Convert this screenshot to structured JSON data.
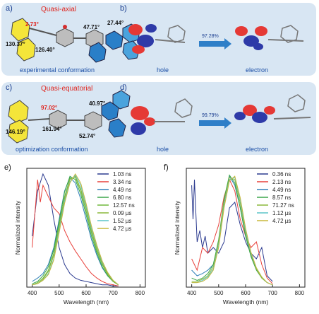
{
  "panels": {
    "a": {
      "letter": "a)",
      "title": "Quasi-axial",
      "caption": "experimental conformation",
      "angles": {
        "a1": "130.37°",
        "a2": "2.73°",
        "a3": "126.40°",
        "a4": "47.71°",
        "a5": "27.44°"
      }
    },
    "b": {
      "letter": "b)",
      "hole": "hole",
      "electron": "electron",
      "percent": "97.28%"
    },
    "c": {
      "letter": "c)",
      "title": "Quasi-equatorial",
      "caption": "optimization conformation",
      "angles": {
        "a1": "97.02°",
        "a2": "146.19°",
        "a3": "161.94°",
        "a4": "52.74°",
        "a5": "40.97°"
      }
    },
    "d": {
      "letter": "d)",
      "hole": "hole",
      "electron": "electron",
      "percent": "99.79%"
    }
  },
  "chart_data": [
    {
      "panel": "e)",
      "type": "line",
      "xlabel": "Wavelength (nm)",
      "ylabel": "Normalized intensity",
      "xlim": [
        380,
        820
      ],
      "ylim": [
        0,
        1.05
      ],
      "xticks": [
        400,
        500,
        600,
        700,
        800
      ],
      "legend": "top-right",
      "series": [
        {
          "name": "1.03 ns",
          "color": "#2b3a8f",
          "x": [
            400,
            420,
            440,
            460,
            480,
            500,
            520,
            540,
            560,
            580,
            600,
            620,
            640,
            660,
            680,
            700,
            720
          ],
          "values": [
            0.45,
            0.85,
            1.0,
            0.9,
            0.6,
            0.35,
            0.2,
            0.12,
            0.08,
            0.06,
            0.05,
            0.04,
            0.03,
            0.02,
            0.02,
            0.01,
            0.01
          ]
        },
        {
          "name": "3.34 ns",
          "color": "#e8403a",
          "x": [
            400,
            420,
            430,
            440,
            460,
            480,
            500,
            520,
            540,
            560,
            580,
            600,
            620,
            640,
            660,
            680,
            700,
            720
          ],
          "values": [
            0.35,
            0.95,
            0.75,
            0.9,
            0.8,
            0.7,
            0.65,
            0.5,
            0.4,
            0.32,
            0.25,
            0.18,
            0.12,
            0.08,
            0.05,
            0.03,
            0.02,
            0.01
          ]
        },
        {
          "name": "4.49 ns",
          "color": "#2f7fb8",
          "x": [
            400,
            420,
            440,
            460,
            480,
            500,
            520,
            540,
            560,
            580,
            600,
            620,
            640,
            660,
            680,
            700,
            720
          ],
          "values": [
            0.05,
            0.08,
            0.12,
            0.2,
            0.35,
            0.6,
            0.85,
            0.97,
            0.92,
            0.78,
            0.6,
            0.42,
            0.28,
            0.17,
            0.1,
            0.05,
            0.02
          ]
        },
        {
          "name": "6.80 ns",
          "color": "#3aa64a",
          "x": [
            400,
            420,
            440,
            460,
            480,
            500,
            520,
            540,
            560,
            580,
            600,
            620,
            640,
            660,
            680,
            700,
            720
          ],
          "values": [
            0.03,
            0.05,
            0.1,
            0.18,
            0.33,
            0.58,
            0.84,
            0.98,
            0.95,
            0.82,
            0.64,
            0.45,
            0.3,
            0.18,
            0.1,
            0.05,
            0.02
          ]
        },
        {
          "name": "12.57 ns",
          "color": "#6fb83a",
          "x": [
            400,
            420,
            440,
            460,
            480,
            500,
            520,
            540,
            560,
            580,
            600,
            620,
            640,
            660,
            680,
            700,
            720
          ],
          "values": [
            0.02,
            0.04,
            0.08,
            0.15,
            0.3,
            0.55,
            0.8,
            0.96,
            0.97,
            0.85,
            0.67,
            0.48,
            0.32,
            0.2,
            0.11,
            0.05,
            0.02
          ]
        },
        {
          "name": "0.09 µs",
          "color": "#8ab83a",
          "x": [
            400,
            420,
            440,
            460,
            480,
            500,
            520,
            540,
            560,
            580,
            600,
            620,
            640,
            660,
            680,
            700,
            720
          ],
          "values": [
            0.02,
            0.03,
            0.07,
            0.14,
            0.28,
            0.52,
            0.78,
            0.95,
            0.98,
            0.87,
            0.7,
            0.5,
            0.34,
            0.21,
            0.12,
            0.06,
            0.02
          ]
        },
        {
          "name": "1.52 µs",
          "color": "#5bc4c9",
          "x": [
            400,
            420,
            440,
            460,
            480,
            500,
            520,
            540,
            560,
            580,
            600,
            620,
            640,
            660,
            680,
            700,
            720
          ],
          "values": [
            0.02,
            0.03,
            0.06,
            0.12,
            0.25,
            0.5,
            0.76,
            0.93,
            0.99,
            0.9,
            0.72,
            0.52,
            0.36,
            0.22,
            0.13,
            0.06,
            0.02
          ]
        },
        {
          "name": "4.72 µs",
          "color": "#c9b83a",
          "x": [
            400,
            420,
            440,
            460,
            480,
            500,
            520,
            540,
            560,
            580,
            600,
            620,
            640,
            660,
            680,
            700,
            720
          ],
          "values": [
            0.02,
            0.03,
            0.06,
            0.11,
            0.24,
            0.48,
            0.74,
            0.92,
            1.0,
            0.92,
            0.74,
            0.54,
            0.37,
            0.23,
            0.13,
            0.06,
            0.02
          ]
        }
      ]
    },
    {
      "panel": "f)",
      "type": "line",
      "xlabel": "Wavelength (nm)",
      "ylabel": "Normalized intensity",
      "xlim": [
        380,
        820
      ],
      "ylim": [
        0,
        1.05
      ],
      "xticks": [
        400,
        500,
        600,
        700,
        800
      ],
      "legend": "top-right",
      "series": [
        {
          "name": "0.36 ns",
          "color": "#2b3a8f",
          "x": [
            400,
            405,
            410,
            420,
            430,
            440,
            450,
            460,
            480,
            500,
            520,
            540,
            560,
            580,
            600,
            620,
            640,
            660,
            680,
            700
          ],
          "values": [
            0.9,
            0.6,
            0.95,
            0.4,
            0.5,
            0.35,
            0.45,
            0.3,
            0.35,
            0.3,
            0.4,
            0.7,
            0.75,
            0.55,
            0.4,
            0.3,
            0.25,
            0.35,
            0.1,
            0.05
          ]
        },
        {
          "name": "2.13 ns",
          "color": "#e8403a",
          "x": [
            400,
            420,
            440,
            460,
            480,
            500,
            520,
            540,
            560,
            580,
            600,
            620,
            640,
            660,
            680,
            700
          ],
          "values": [
            0.25,
            0.15,
            0.35,
            0.3,
            0.4,
            0.55,
            0.8,
            0.95,
            0.85,
            0.6,
            0.45,
            0.35,
            0.4,
            0.2,
            0.08,
            0.03
          ]
        },
        {
          "name": "4.49 ns",
          "color": "#2f7fb8",
          "x": [
            400,
            420,
            440,
            460,
            480,
            500,
            520,
            540,
            560,
            580,
            600,
            620,
            640,
            660,
            680,
            700
          ],
          "values": [
            0.15,
            0.1,
            0.12,
            0.15,
            0.2,
            0.4,
            0.75,
            0.98,
            0.9,
            0.7,
            0.45,
            0.28,
            0.16,
            0.08,
            0.04,
            0.02
          ]
        },
        {
          "name": "8.57 ns",
          "color": "#3aa64a",
          "x": [
            400,
            420,
            440,
            460,
            480,
            500,
            520,
            540,
            560,
            580,
            600,
            620,
            640,
            660,
            680,
            700
          ],
          "values": [
            0.08,
            0.06,
            0.08,
            0.12,
            0.2,
            0.42,
            0.78,
            0.99,
            0.92,
            0.7,
            0.45,
            0.27,
            0.15,
            0.08,
            0.04,
            0.02
          ]
        },
        {
          "name": "71.27 ns",
          "color": "#8ab83a",
          "x": [
            400,
            420,
            440,
            460,
            480,
            500,
            520,
            540,
            560,
            580,
            600,
            620,
            640,
            660,
            680,
            700
          ],
          "values": [
            0.05,
            0.05,
            0.07,
            0.1,
            0.18,
            0.4,
            0.76,
            0.97,
            0.95,
            0.74,
            0.48,
            0.29,
            0.16,
            0.08,
            0.04,
            0.02
          ]
        },
        {
          "name": "1.12 µs",
          "color": "#5bc4c9",
          "x": [
            400,
            420,
            440,
            460,
            480,
            500,
            520,
            540,
            560,
            580,
            600,
            620,
            640,
            660,
            680,
            700
          ],
          "values": [
            0.04,
            0.04,
            0.06,
            0.09,
            0.16,
            0.37,
            0.72,
            0.95,
            0.97,
            0.77,
            0.5,
            0.3,
            0.17,
            0.09,
            0.04,
            0.02
          ]
        },
        {
          "name": "4.72 µs",
          "color": "#c9b83a",
          "x": [
            400,
            420,
            440,
            460,
            480,
            500,
            520,
            540,
            560,
            580,
            600,
            620,
            640,
            660,
            680,
            700
          ],
          "values": [
            0.04,
            0.04,
            0.05,
            0.08,
            0.15,
            0.35,
            0.7,
            0.94,
            0.98,
            0.79,
            0.52,
            0.31,
            0.17,
            0.09,
            0.04,
            0.02
          ]
        }
      ]
    }
  ]
}
